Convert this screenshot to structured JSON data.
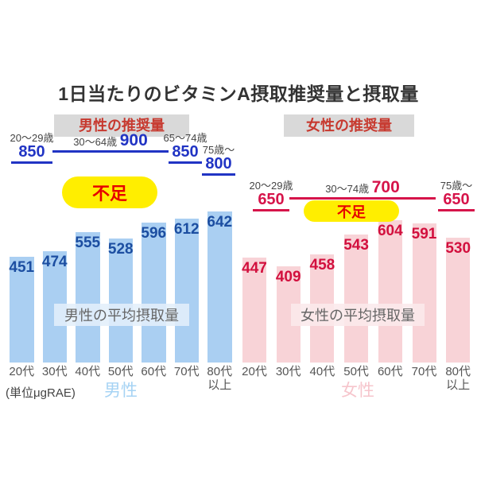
{
  "title": "1日当たりのビタミンA摂取推奨量と摂取量",
  "unit_label": "(単位μgRAE)",
  "misc_colors": {
    "insufficient_bg": "#ffee00",
    "insufficient_text": "#e60000",
    "title_text": "#333333",
    "tick_text": "#555555",
    "age_label_text": "#444444",
    "average_label_text": "#666666"
  },
  "chart_data": [
    {
      "type": "bar",
      "panel": "male",
      "header": "男性の推奨量",
      "average_label": "男性の平均摂取量",
      "gender_label": "男性",
      "insufficient_label": "不足",
      "categories": [
        "20代",
        "30代",
        "40代",
        "50代",
        "60代",
        "70代",
        "80代以上"
      ],
      "values": [
        451,
        474,
        555,
        528,
        596,
        612,
        642
      ],
      "recommended": [
        {
          "age_label": "20〜29歳",
          "value": 850,
          "label_style": "stacked"
        },
        {
          "age_label": "30〜64歳",
          "value": 900,
          "label_style": "inline"
        },
        {
          "age_label": "65〜74歳",
          "value": 850,
          "label_style": "stacked"
        },
        {
          "age_label": "75歳〜",
          "value": 800,
          "label_style": "stacked"
        }
      ],
      "ylim": [
        0,
        960
      ],
      "legend_position": "none",
      "grid": false,
      "colors": {
        "bar": "#aacff2",
        "value_text": "#1c4ea1",
        "line": "#2134c4",
        "gender_label": "#a6d3f4",
        "average_bg": "rgba(227,239,251,0.88)",
        "header_bg": "#d9d9d9",
        "header_text": "#c7392f"
      }
    },
    {
      "type": "bar",
      "panel": "female",
      "header": "女性の推奨量",
      "average_label": "女性の平均摂取量",
      "gender_label": "女性",
      "insufficient_label": "不足",
      "categories": [
        "20代",
        "30代",
        "40代",
        "50代",
        "60代",
        "70代",
        "80代以上"
      ],
      "values": [
        447,
        409,
        458,
        543,
        604,
        591,
        530
      ],
      "recommended": [
        {
          "age_label": "20〜29歳",
          "value": 650,
          "label_style": "stacked"
        },
        {
          "age_label": "30〜74歳",
          "value": 700,
          "label_style": "inline"
        },
        {
          "age_label": "75歳〜",
          "value": 650,
          "label_style": "stacked"
        }
      ],
      "ylim": [
        0,
        960
      ],
      "legend_position": "none",
      "grid": false,
      "colors": {
        "bar": "#f8d3d7",
        "value_text": "#d2103e",
        "line": "#d6144a",
        "gender_label": "#f6c5cc",
        "average_bg": "rgba(251,233,236,0.88)",
        "header_bg": "#d9d9d9",
        "header_text": "#c7392f"
      }
    }
  ]
}
